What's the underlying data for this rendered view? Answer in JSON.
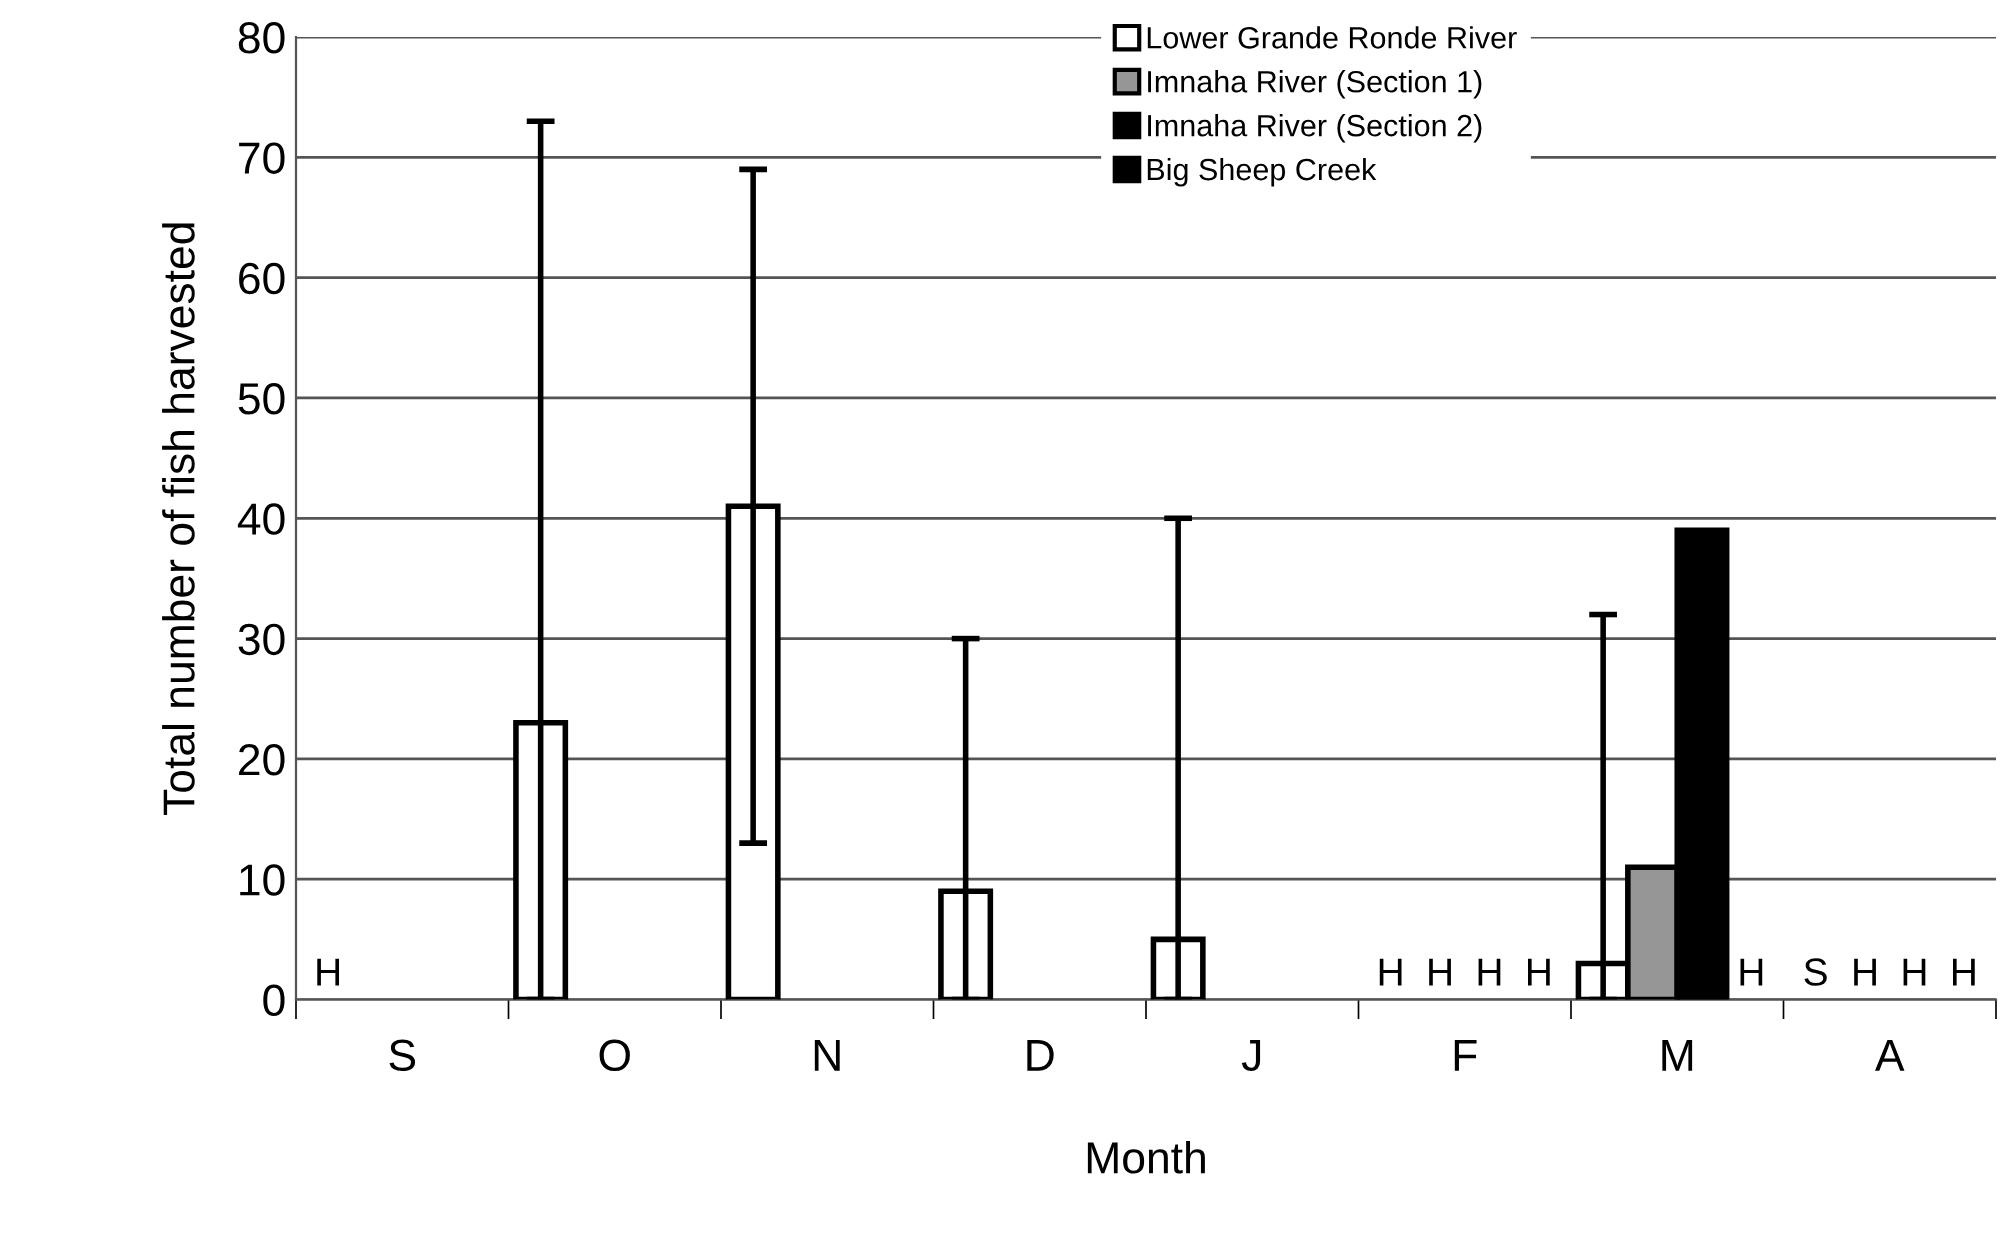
{
  "chart_data": {
    "type": "bar",
    "xlabel": "Month",
    "ylabel": "Total number of fish harvested",
    "categories": [
      "S",
      "O",
      "N",
      "D",
      "J",
      "F",
      "M",
      "A"
    ],
    "series": [
      {
        "name": "Lower Grande Ronde River",
        "color": "#ffffff",
        "values": [
          null,
          23,
          41,
          9,
          5,
          null,
          3,
          null
        ],
        "errors": [
          null,
          [
            0,
            73
          ],
          [
            13,
            69
          ],
          [
            0,
            30
          ],
          [
            0,
            40
          ],
          null,
          [
            0,
            32
          ],
          null
        ],
        "value_labels": [
          "H",
          null,
          null,
          null,
          null,
          "H",
          null,
          "S"
        ]
      },
      {
        "name": "Imnaha River (Section 1)",
        "color": "#969696",
        "values": [
          null,
          null,
          null,
          null,
          null,
          null,
          11,
          null
        ],
        "value_labels": [
          null,
          null,
          null,
          null,
          null,
          "H",
          null,
          "H"
        ]
      },
      {
        "name": "Imnaha River (Section 2)",
        "color": "#000000",
        "values": [
          null,
          null,
          null,
          null,
          null,
          null,
          39,
          null
        ],
        "value_labels": [
          null,
          null,
          null,
          null,
          null,
          "H",
          null,
          "H"
        ]
      },
      {
        "name": "Big Sheep Creek",
        "color": "#000000",
        "values": [
          null,
          null,
          null,
          null,
          null,
          null,
          null,
          null
        ],
        "value_labels": [
          null,
          null,
          null,
          null,
          null,
          "H",
          "H",
          "H"
        ]
      }
    ],
    "ylim": [
      0,
      80
    ],
    "yticks": [
      0,
      10,
      20,
      30,
      40,
      50,
      60,
      70,
      80
    ],
    "grid": "y",
    "legend": "top"
  }
}
